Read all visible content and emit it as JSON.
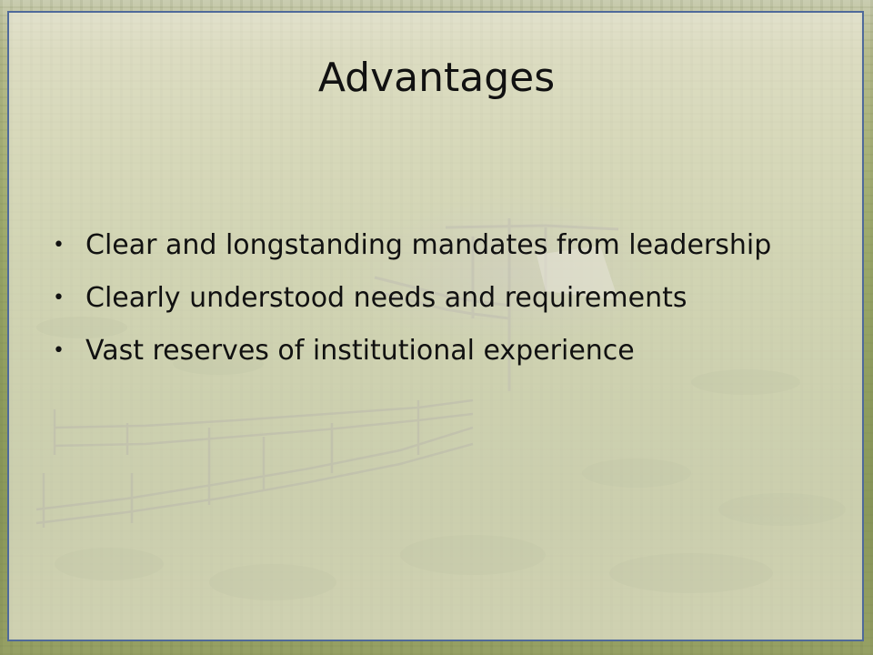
{
  "slide": {
    "title": "Advantages",
    "bullets": [
      "Clear and longstanding mandates from leadership",
      "Clearly understood needs and requirements",
      "Vast reserves of institutional experience"
    ],
    "bullet_glyph": "•"
  },
  "colors": {
    "frame_border": "#4f6a9a",
    "text": "#111111"
  }
}
